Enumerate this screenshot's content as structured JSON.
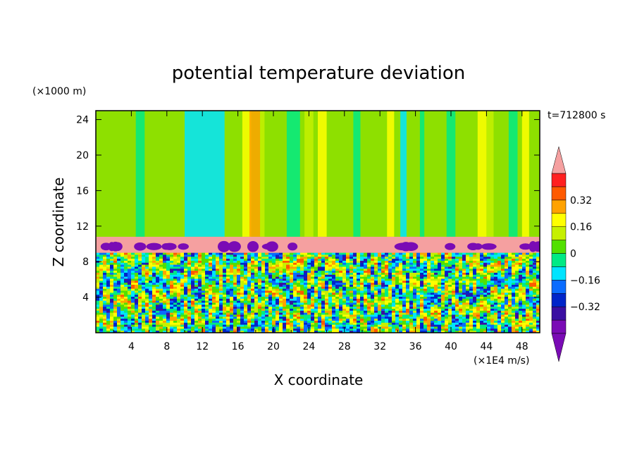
{
  "chart_data": {
    "type": "heatmap",
    "title": "potential temperature deviation",
    "xlabel": "X coordinate",
    "ylabel": "Z coordinate",
    "x_units": "(×1E4 m/s)",
    "y_units": "(×1000 m)",
    "time_label": "t=712800 s",
    "xlim": [
      0,
      50
    ],
    "ylim": [
      0,
      25
    ],
    "x_ticks": [
      4,
      8,
      12,
      16,
      20,
      24,
      28,
      32,
      36,
      40,
      44,
      48
    ],
    "y_ticks": [
      4,
      8,
      12,
      16,
      20,
      24
    ],
    "colorbar": {
      "levels": [
        -0.48,
        -0.4,
        -0.32,
        -0.24,
        -0.16,
        -0.08,
        0,
        0.08,
        0.16,
        0.24,
        0.32,
        0.4,
        0.48
      ],
      "tick_labels": [
        "0.32",
        "0.16",
        "0",
        "−0.16",
        "−0.32"
      ],
      "tick_values": [
        0.32,
        0.16,
        0,
        -0.16,
        -0.32
      ],
      "colors": [
        "#7a0bb5",
        "#3a0fa2",
        "#0025c9",
        "#0a6cff",
        "#00e4ff",
        "#00ea85",
        "#52e000",
        "#c6f000",
        "#ffff00",
        "#ffa200",
        "#ff5a00",
        "#ff2020",
        "#f5a0a0"
      ],
      "extend": "both"
    },
    "features": {
      "upper_band_z": [
        10.8,
        25
      ],
      "upper_background": "#8ee000",
      "inversion_band_z": [
        9.0,
        10.8
      ],
      "inversion_color": "#f5a0a0",
      "lower_turbulent_z": [
        0,
        9.0
      ],
      "upper_stripes": [
        {
          "x": [
            10.0,
            14.5
          ],
          "color": "#00e4ff"
        },
        {
          "x": [
            4.5,
            5.5
          ],
          "color": "#00ea85"
        },
        {
          "x": [
            16.5,
            17.5
          ],
          "color": "#ffff00"
        },
        {
          "x": [
            17.3,
            18.5
          ],
          "color": "#ffa200"
        },
        {
          "x": [
            18.5,
            19.0
          ],
          "color": "#c6f000"
        },
        {
          "x": [
            21.5,
            23.0
          ],
          "color": "#00ea85"
        },
        {
          "x": [
            23.5,
            24.5
          ],
          "color": "#c6f000"
        },
        {
          "x": [
            25.0,
            26.0
          ],
          "color": "#ffff00"
        },
        {
          "x": [
            29.0,
            29.8
          ],
          "color": "#00ea85"
        },
        {
          "x": [
            32.8,
            33.6
          ],
          "color": "#ffff00"
        },
        {
          "x": [
            34.3,
            35.0
          ],
          "color": "#00e4ff"
        },
        {
          "x": [
            36.5,
            37.0
          ],
          "color": "#00ea85"
        },
        {
          "x": [
            39.5,
            40.5
          ],
          "color": "#00ea85"
        },
        {
          "x": [
            43.0,
            44.0
          ],
          "color": "#ffff00"
        },
        {
          "x": [
            44.0,
            44.8
          ],
          "color": "#c6f000"
        },
        {
          "x": [
            46.5,
            47.5
          ],
          "color": "#00ea85"
        },
        {
          "x": [
            48.0,
            48.8
          ],
          "color": "#ffff00"
        }
      ]
    }
  }
}
